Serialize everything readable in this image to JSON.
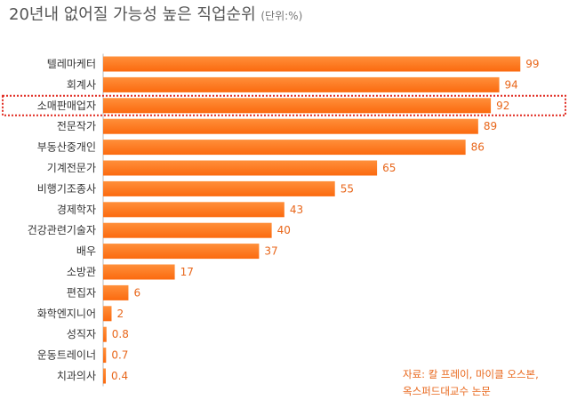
{
  "title": "20년내 없어질 가능성 높은 직업순위",
  "unit": "(단위:%)",
  "source": [
    "자료: 칼 프레이, 마이클 오스본,",
    "옥스퍼드대교수 논문"
  ],
  "colors": {
    "bar": "#fb6a0f",
    "bar_light": "#ff8f3a",
    "value": "#e8661a",
    "highlight": "#e0281e",
    "axis": "#bbbbbb"
  },
  "chart_data": {
    "type": "bar",
    "orientation": "horizontal",
    "title": "20년내 없어질 가능성 높은 직업순위",
    "categories": [
      "텔레마케터",
      "회계사",
      "소매판매업자",
      "전문작가",
      "부동산중개인",
      "기계전문가",
      "비행기조종사",
      "경제학자",
      "건강관련기술자",
      "배우",
      "소방관",
      "편집자",
      "화학엔지니어",
      "성직자",
      "운동트레이너",
      "치과의사"
    ],
    "values": [
      99,
      94,
      92,
      89,
      86,
      65,
      55,
      43,
      40,
      37,
      17,
      6,
      2,
      0.8,
      0.7,
      0.4
    ],
    "value_labels": [
      "99",
      "94",
      "92",
      "89",
      "86",
      "65",
      "55",
      "43",
      "40",
      "37",
      "17",
      "6",
      "2",
      "0.8",
      "0.7",
      "0.4"
    ],
    "highlighted_category": "소매판매업자",
    "xlim": [
      0,
      100
    ],
    "grid": false
  }
}
